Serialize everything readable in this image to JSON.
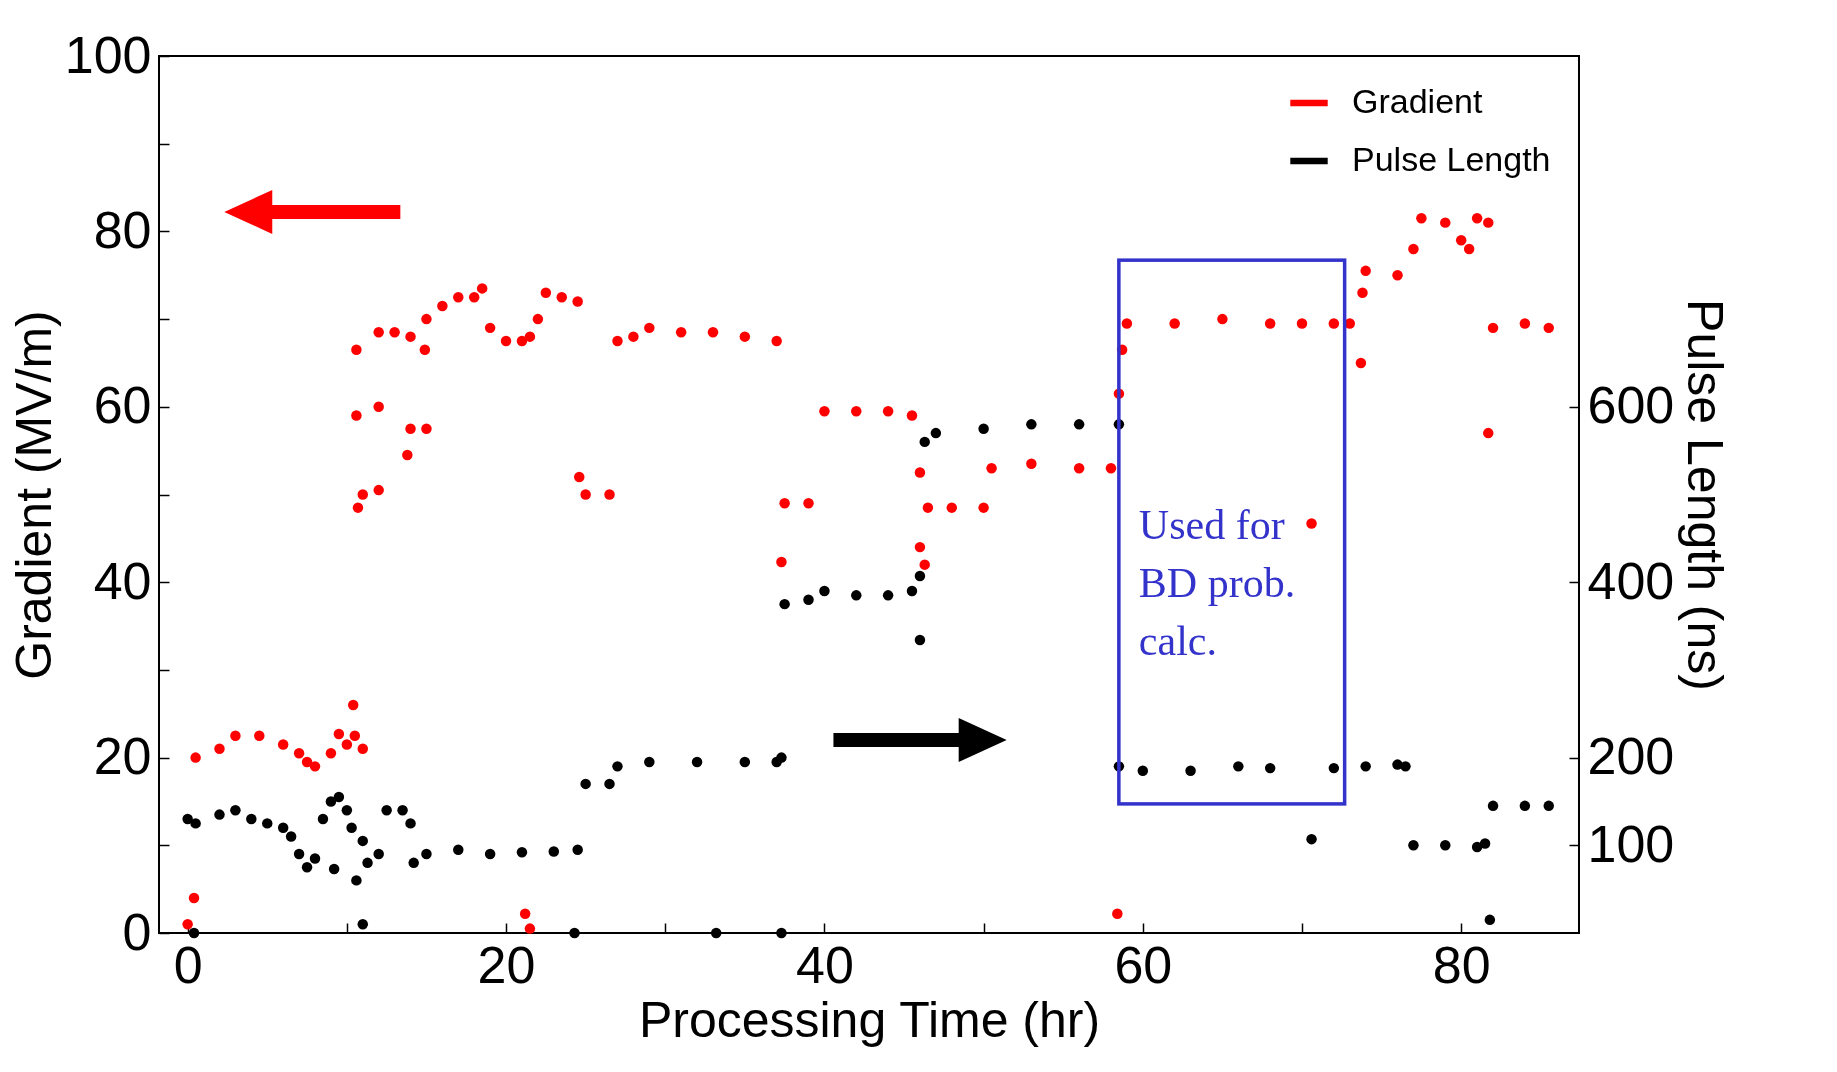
{
  "chart_data": {
    "type": "scatter",
    "xlabel": "Processing Time (hr)",
    "ylabel": "Gradient (MV/m)",
    "y2label": "Pulse Length (ns)",
    "xlim": [
      -1.8,
      87.4
    ],
    "xticks": [
      0,
      {
        "value": 10,
        "label": null
      },
      20,
      {
        "value": 30,
        "label": null
      },
      40,
      {
        "value": 50,
        "label": null
      },
      60,
      {
        "value": 70,
        "label": null
      },
      80
    ],
    "ylim": [
      0,
      100
    ],
    "yticks": [
      0,
      {
        "value": 10,
        "label": null
      },
      20,
      {
        "value": 30,
        "label": null
      },
      40,
      {
        "value": 50,
        "label": null
      },
      60,
      {
        "value": 70,
        "label": null
      },
      80,
      {
        "value": 90,
        "label": null
      },
      100
    ],
    "y2lim": [
      0,
      1000
    ],
    "y2ticks": [
      100,
      200,
      400,
      600
    ],
    "marker": "circle",
    "grid": false,
    "legend": "top right",
    "series": [
      {
        "name": "Gradient",
        "color": "#ff0000",
        "x": [
          0,
          0.4,
          0.5,
          2,
          3,
          4.5,
          6,
          7,
          7.5,
          8,
          9,
          9.5,
          10,
          10.5,
          11,
          10.4,
          10.6,
          10.6,
          10.7,
          11,
          12,
          12,
          12,
          13,
          14,
          13.8,
          14,
          15,
          14.9,
          15,
          16,
          17,
          18,
          18.5,
          19,
          20,
          21,
          21.5,
          21.2,
          21.5,
          22,
          22.5,
          23.5,
          24.5,
          24.6,
          25,
          26.5,
          27,
          28,
          29,
          31,
          33,
          35,
          37,
          37.3,
          37.5,
          39,
          40,
          42,
          44,
          45.5,
          46,
          46,
          46.3,
          46.5,
          48,
          50,
          50.5,
          53,
          56,
          58,
          58.5,
          58.4,
          58.7,
          59,
          62,
          65,
          68,
          70,
          70.6,
          72,
          73,
          73.7,
          73.8,
          74,
          76,
          77,
          77.5,
          79,
          80,
          80.5,
          81,
          81.7,
          81.7,
          82,
          84,
          85.5
        ],
        "values": [
          1,
          4,
          20,
          21,
          22.5,
          22.5,
          21.5,
          20.5,
          19.5,
          19,
          20.5,
          22.7,
          21.5,
          22.5,
          21,
          26,
          66.5,
          59,
          48.5,
          50,
          50.5,
          60,
          68.5,
          68.5,
          68,
          54.5,
          57.5,
          57.5,
          66.5,
          70,
          71.5,
          72.5,
          72.5,
          73.5,
          69,
          67.5,
          67.5,
          68,
          2.2,
          0.5,
          70,
          73,
          72.5,
          72,
          52,
          50,
          50,
          67.5,
          68,
          69,
          68.5,
          68.5,
          68,
          67.5,
          42.3,
          49,
          49,
          59.5,
          59.5,
          59.5,
          59,
          52.5,
          44,
          42,
          48.5,
          48.5,
          48.5,
          53,
          53.5,
          53,
          53,
          61.5,
          2.2,
          66.5,
          69.5,
          69.5,
          70,
          69.5,
          69.5,
          46.7,
          69.5,
          69.5,
          65,
          73,
          75.5,
          75,
          78,
          81.5,
          81,
          79,
          78,
          81.5,
          81,
          57,
          69,
          69.5,
          69
        ]
      },
      {
        "name": "Pulse Length",
        "color": "#000000",
        "axis": "y2",
        "x": [
          0,
          0.4,
          0.5,
          2,
          3,
          4,
          5,
          6,
          6.5,
          7,
          7.5,
          8,
          8.5,
          9,
          9.5,
          10,
          9.2,
          10.3,
          10.6,
          11,
          11.3,
          11,
          12,
          12.5,
          13.5,
          14,
          14.2,
          15,
          17,
          19,
          21,
          23,
          24.5,
          24.3,
          25,
          26.5,
          27,
          29,
          32,
          33.2,
          35,
          37,
          37.3,
          37.3,
          37.5,
          39,
          40,
          42,
          44,
          45.5,
          46,
          46,
          46.3,
          47,
          50,
          53,
          56,
          58.5,
          58.5,
          60,
          63,
          66,
          68,
          70.6,
          72,
          74,
          76,
          76.5,
          77,
          79,
          81,
          81.5,
          81.8,
          82,
          84,
          85.5
        ],
        "values": [
          130,
          0,
          125,
          135,
          140,
          130,
          125,
          120,
          110,
          90,
          75,
          85,
          130,
          150,
          155,
          140,
          73,
          120,
          60,
          105,
          80,
          10,
          90,
          140,
          140,
          125,
          80,
          90,
          95,
          90,
          92,
          93,
          95,
          0,
          170,
          170,
          190,
          195,
          195,
          0,
          195,
          195,
          200,
          0,
          375,
          380,
          390,
          385,
          385,
          390,
          407,
          334,
          560,
          570,
          575,
          580,
          580,
          580,
          190,
          185,
          185,
          190,
          188,
          107,
          188,
          190,
          192,
          190,
          100,
          100,
          98,
          102,
          15,
          145,
          145,
          145
        ]
      }
    ],
    "annotations": [
      "Used for BD prob. calc."
    ]
  }
}
